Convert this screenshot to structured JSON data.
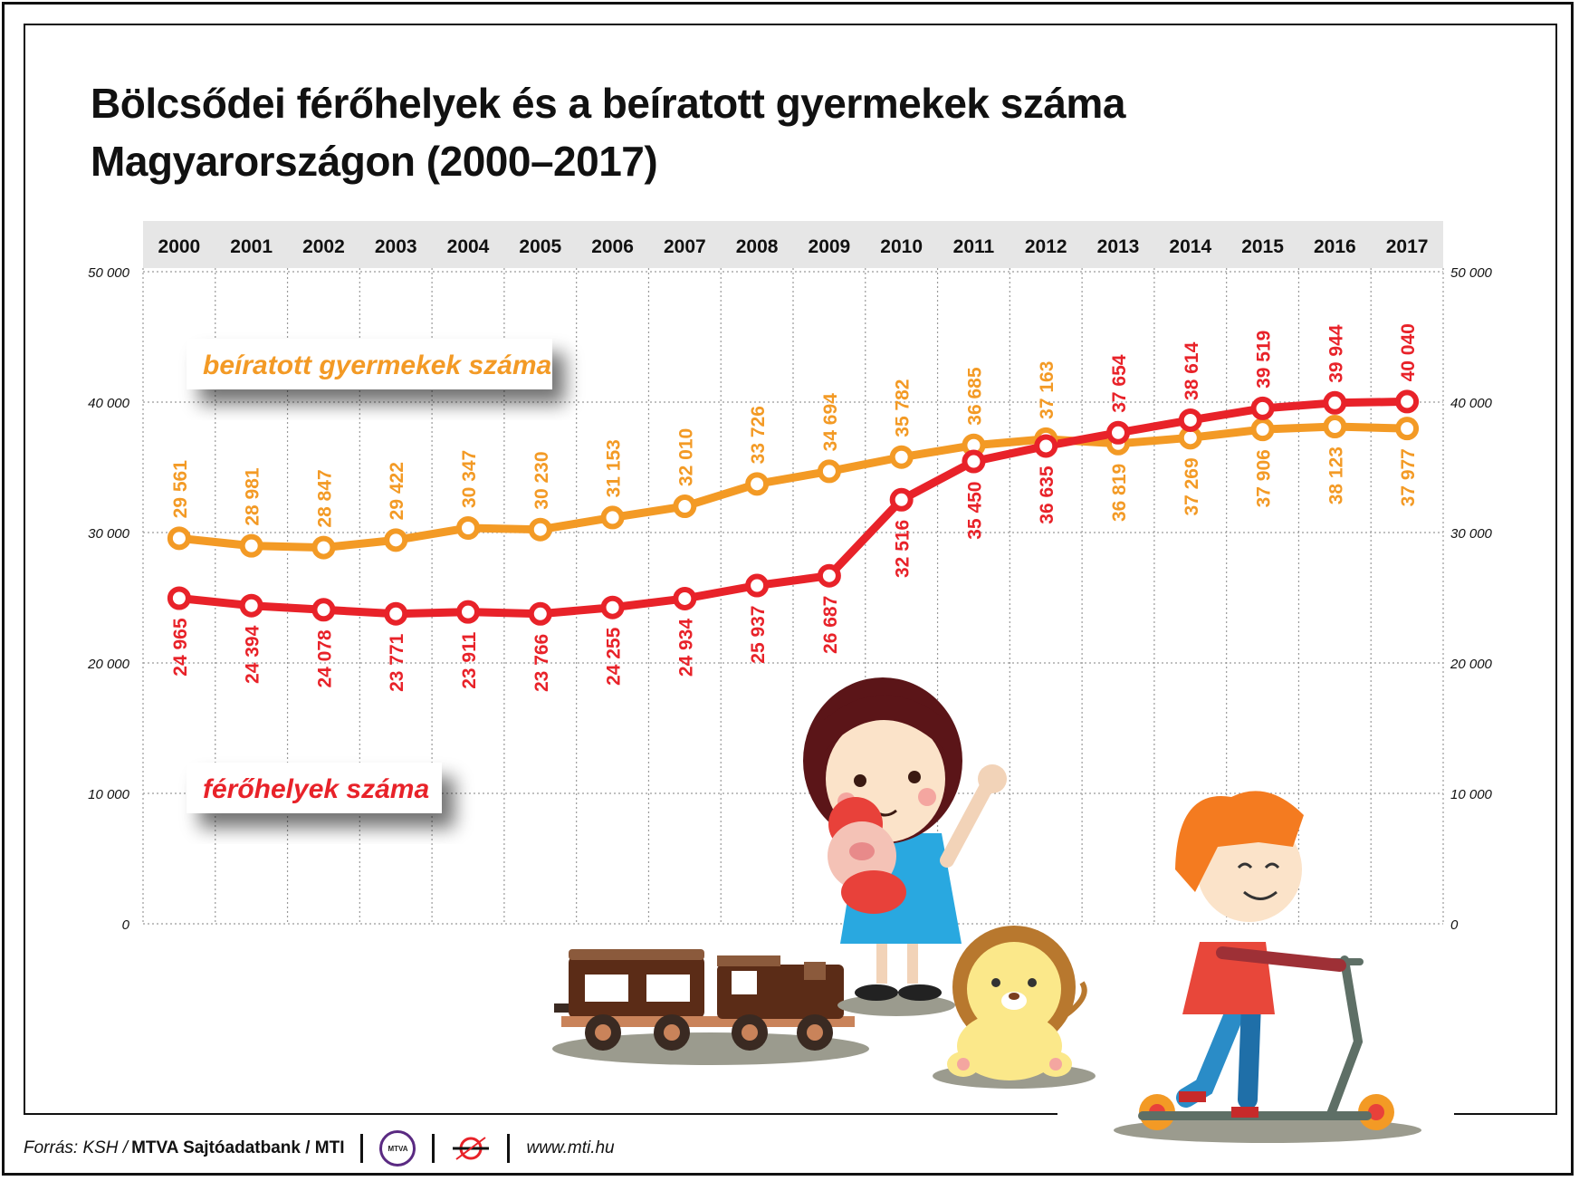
{
  "title": {
    "line1": "Bölcsődei férőhelyek és a beíratott gyermekek száma",
    "line2": "Magyarországon (2000–2017)"
  },
  "footer": {
    "source_label": "Forrás: KSH /",
    "source_rest": "MTVA Sajtóadatbank / MTI",
    "logo_mtva_text": "MTVA",
    "url": "www.mti.hu"
  },
  "colors": {
    "enrolled": "#F39A25",
    "places": "#E82229",
    "header_band": "#E6E6E6",
    "grid": "#9A9A9A"
  },
  "chart_data": {
    "type": "line",
    "title": "Bölcsődei férőhelyek és a beíratott gyermekek száma Magyarországon (2000–2017)",
    "x": [
      2000,
      2001,
      2002,
      2003,
      2004,
      2005,
      2006,
      2007,
      2008,
      2009,
      2010,
      2011,
      2012,
      2013,
      2014,
      2015,
      2016,
      2017
    ],
    "x_tick_labels": [
      "2000",
      "2001",
      "2002",
      "2003",
      "2004",
      "2005",
      "2006",
      "2007",
      "2008",
      "2009",
      "2010",
      "2011",
      "2012",
      "2013",
      "2014",
      "2015",
      "2016",
      "2017"
    ],
    "ylim": [
      0,
      50000
    ],
    "y_ticks": [
      0,
      10000,
      20000,
      30000,
      40000,
      50000
    ],
    "y_tick_labels": [
      "0",
      "10 000",
      "20 000",
      "30 000",
      "40 000",
      "50 000"
    ],
    "grid": true,
    "axes": "left and right y-axis with identical scale; years shown in a grey band at the top",
    "series": [
      {
        "name": "beíratott gyermekek száma",
        "color": "#F39A25",
        "values": [
          29561,
          28981,
          28847,
          29422,
          30347,
          30230,
          31153,
          32010,
          33726,
          34694,
          35782,
          36685,
          37163,
          36819,
          37269,
          37906,
          38123,
          37977
        ],
        "labels": [
          "29 561",
          "28 981",
          "28 847",
          "29 422",
          "30 347",
          "30 230",
          "31 153",
          "32 010",
          "33 726",
          "34 694",
          "35 782",
          "36 685",
          "37 163",
          "36 819",
          "37 269",
          "37 906",
          "38 123",
          "37 977"
        ]
      },
      {
        "name": "férőhelyek száma",
        "color": "#E82229",
        "values": [
          24965,
          24394,
          24078,
          23771,
          23911,
          23766,
          24255,
          24934,
          25937,
          26687,
          32516,
          35450,
          36635,
          37654,
          38614,
          39519,
          39944,
          40040
        ],
        "labels": [
          "24 965",
          "24 394",
          "24 078",
          "23 771",
          "23 911",
          "23 766",
          "24 255",
          "24 934",
          "25 937",
          "26 687",
          "32 516",
          "35 450",
          "36 635",
          "37 654",
          "38 614",
          "39 519",
          "39 944",
          "40 040"
        ]
      }
    ]
  }
}
